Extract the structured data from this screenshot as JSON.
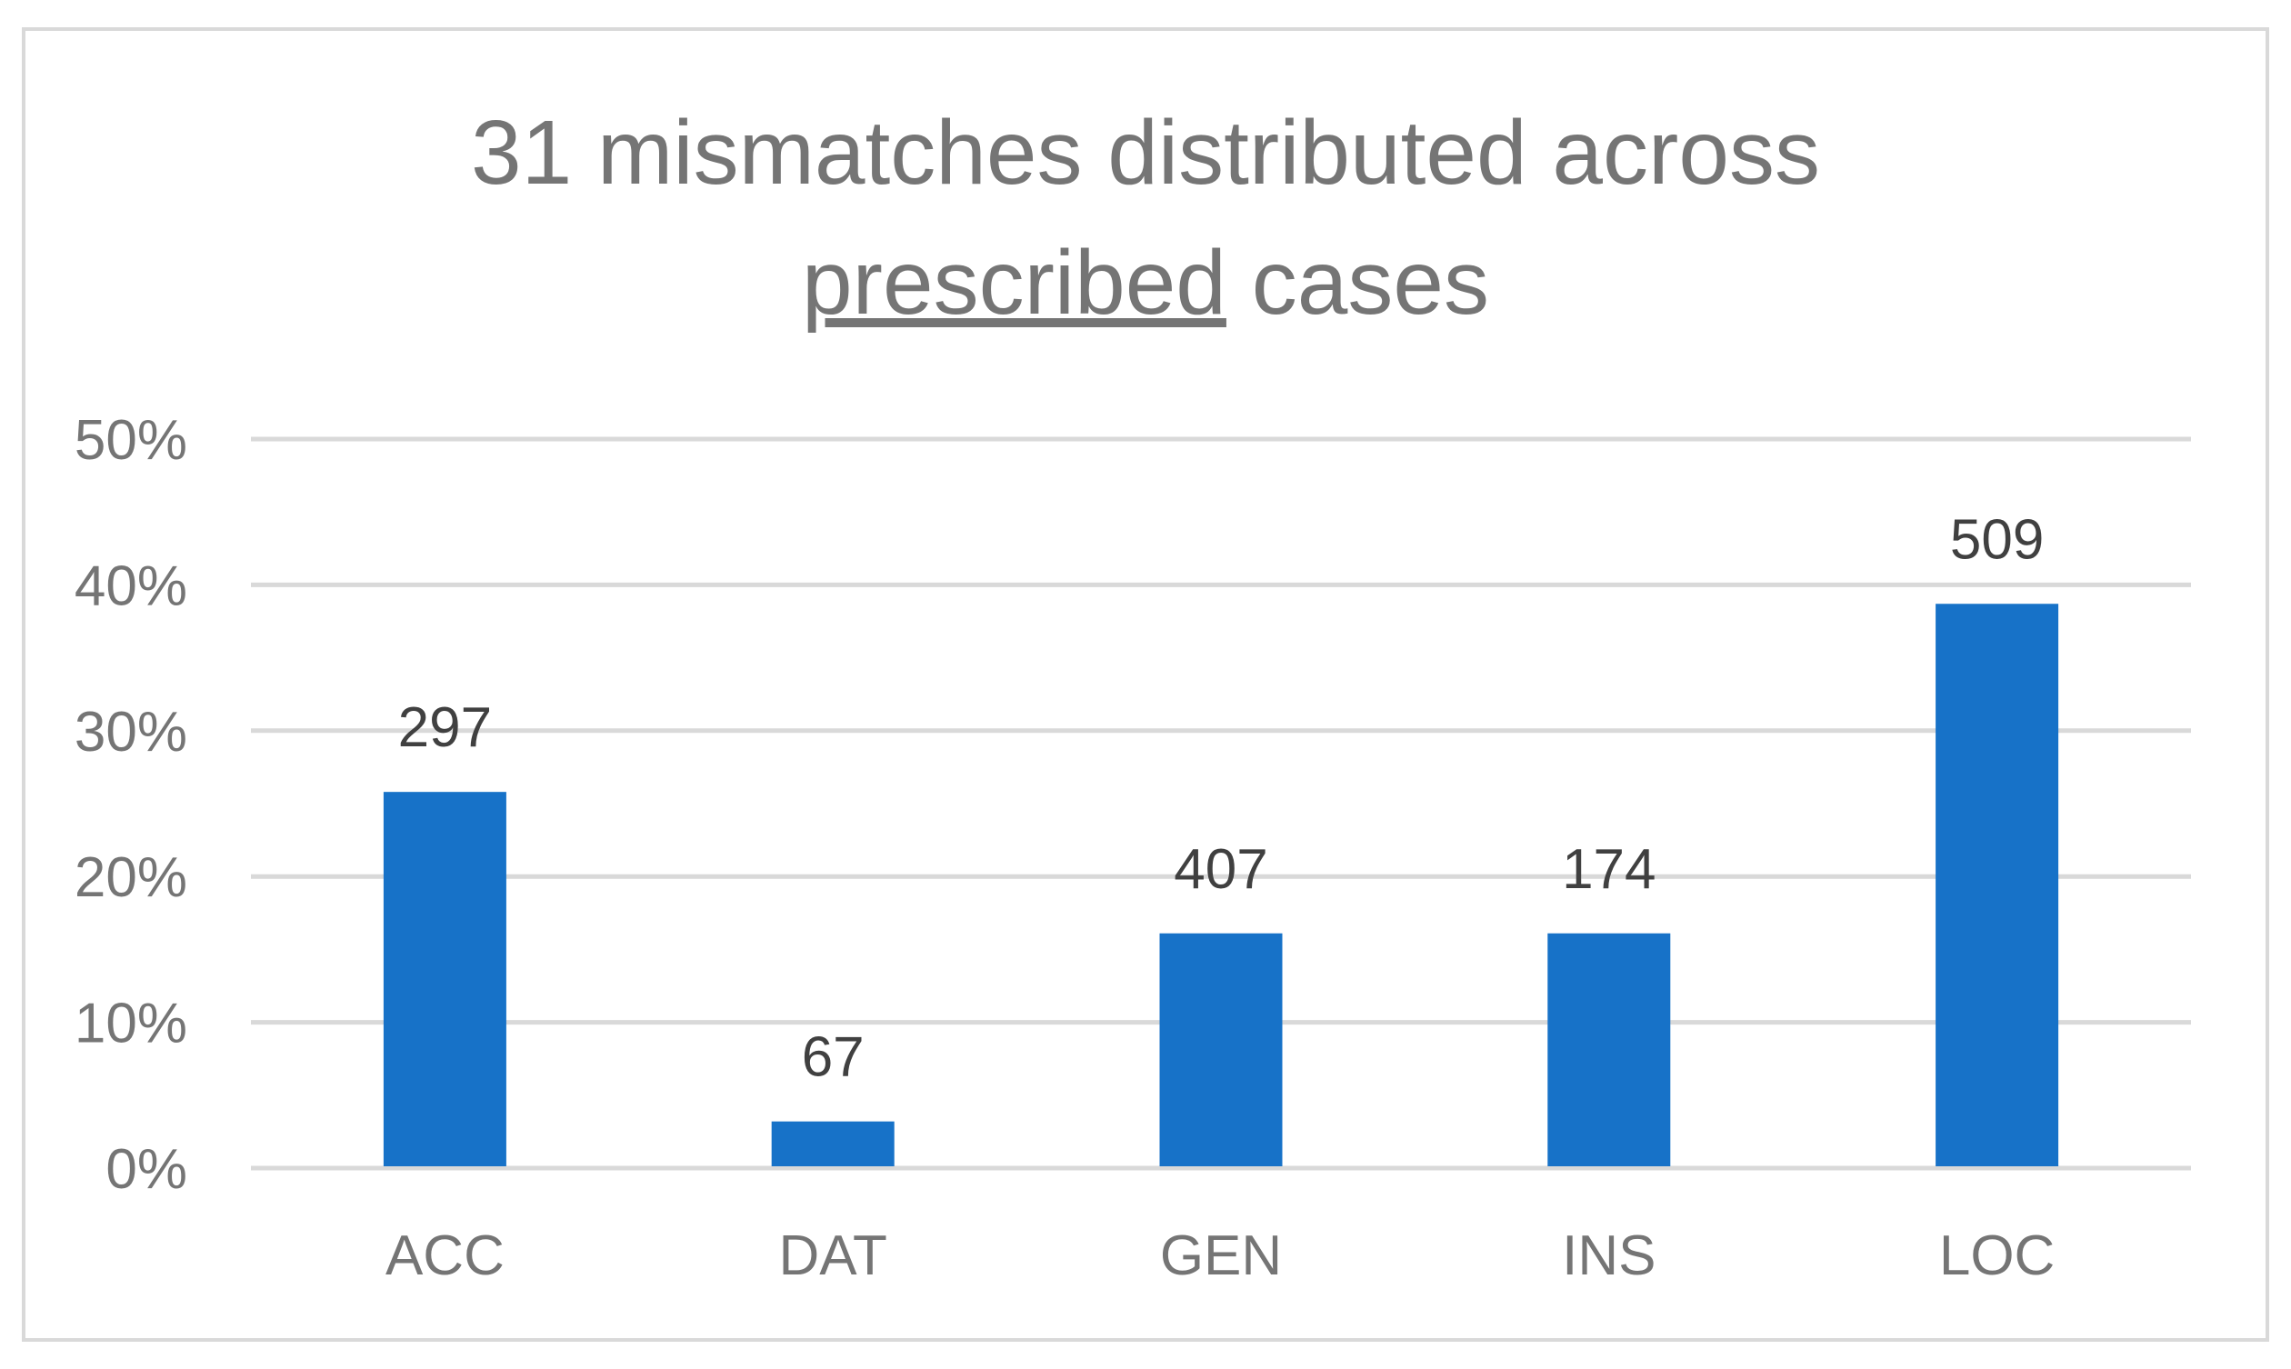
{
  "chart_data": {
    "type": "bar",
    "title": {
      "line1": "31 mismatches distributed across",
      "line2_underlined": "prescribed",
      "line2_rest": " cases"
    },
    "categories": [
      "ACC",
      "DAT",
      "GEN",
      "INS",
      "LOC"
    ],
    "values": [
      25.8,
      3.2,
      16.1,
      16.1,
      38.7
    ],
    "data_labels": [
      "297",
      "67",
      "407",
      "174",
      "509"
    ],
    "ylim": [
      0,
      50
    ],
    "yticks": [
      0,
      10,
      20,
      30,
      40,
      50
    ],
    "ytick_labels": [
      "0%",
      "10%",
      "20%",
      "30%",
      "40%",
      "50%"
    ],
    "grid": true,
    "xlabel": "",
    "ylabel": "",
    "legend": "none"
  },
  "colors": {
    "bar": "#1772C8",
    "grid": "#d9d9d9",
    "text": "#757575",
    "label": "#404040",
    "border": "#d9d9d9"
  }
}
